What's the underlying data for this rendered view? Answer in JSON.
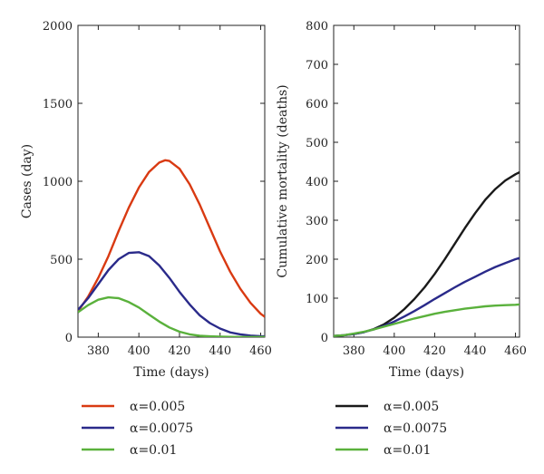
{
  "chart_data": [
    {
      "type": "line",
      "xlabel": "Time (days)",
      "ylabel": "Cases (day)",
      "xlim": [
        370,
        462
      ],
      "ylim": [
        0,
        2000
      ],
      "xticks": [
        "380",
        "400",
        "420",
        "440",
        "460"
      ],
      "yticks": [
        "0",
        "500",
        "1000",
        "1500",
        "2000"
      ],
      "grid": false,
      "legend_position": "below",
      "series": [
        {
          "name": "α=0.005",
          "color": "#d93a12",
          "x": [
            370,
            375,
            380,
            385,
            390,
            395,
            400,
            405,
            410,
            413,
            415,
            420,
            425,
            430,
            435,
            440,
            445,
            450,
            455,
            460,
            462
          ],
          "y": [
            165,
            260,
            380,
            520,
            680,
            830,
            960,
            1060,
            1120,
            1135,
            1130,
            1080,
            980,
            850,
            700,
            550,
            420,
            310,
            220,
            150,
            130
          ]
        },
        {
          "name": "α=0.0075",
          "color": "#2a2a8a",
          "x": [
            370,
            375,
            380,
            385,
            390,
            395,
            400,
            405,
            410,
            415,
            420,
            425,
            430,
            435,
            440,
            445,
            450,
            455,
            460,
            462
          ],
          "y": [
            175,
            250,
            340,
            430,
            500,
            540,
            545,
            520,
            460,
            380,
            290,
            210,
            140,
            90,
            55,
            30,
            18,
            10,
            6,
            5
          ]
        },
        {
          "name": "α=0.01",
          "color": "#5ab13c",
          "x": [
            370,
            375,
            380,
            385,
            390,
            395,
            400,
            405,
            410,
            415,
            420,
            425,
            430,
            435,
            440,
            445,
            450,
            455,
            460,
            462
          ],
          "y": [
            160,
            205,
            240,
            255,
            250,
            225,
            190,
            145,
            100,
            62,
            35,
            18,
            9,
            5,
            3,
            2,
            1,
            1,
            1,
            1
          ]
        }
      ]
    },
    {
      "type": "line",
      "xlabel": "Time (days)",
      "ylabel": "Cumulative mortality (deaths)",
      "xlim": [
        370,
        462
      ],
      "ylim": [
        0,
        800
      ],
      "xticks": [
        "380",
        "400",
        "420",
        "440",
        "460"
      ],
      "yticks": [
        "0",
        "100",
        "200",
        "300",
        "400",
        "500",
        "600",
        "700",
        "800"
      ],
      "grid": false,
      "legend_position": "below",
      "series": [
        {
          "name": "α=0.005",
          "color": "#1a1a1a",
          "x": [
            370,
            375,
            380,
            385,
            390,
            395,
            400,
            405,
            410,
            415,
            420,
            425,
            430,
            435,
            440,
            445,
            450,
            455,
            460,
            462
          ],
          "y": [
            3,
            5,
            8,
            13,
            21,
            33,
            50,
            72,
            98,
            128,
            162,
            200,
            240,
            280,
            318,
            352,
            380,
            402,
            418,
            423
          ]
        },
        {
          "name": "α=0.0075",
          "color": "#2a2a8a",
          "x": [
            370,
            375,
            380,
            385,
            390,
            395,
            400,
            405,
            410,
            415,
            420,
            425,
            430,
            435,
            440,
            445,
            450,
            455,
            460,
            462
          ],
          "y": [
            3,
            5,
            8,
            13,
            20,
            29,
            40,
            53,
            67,
            82,
            98,
            113,
            128,
            142,
            155,
            168,
            180,
            190,
            200,
            203
          ]
        },
        {
          "name": "α=0.01",
          "color": "#5ab13c",
          "x": [
            370,
            375,
            380,
            385,
            390,
            395,
            400,
            405,
            410,
            415,
            420,
            425,
            430,
            435,
            440,
            445,
            450,
            455,
            460,
            462
          ],
          "y": [
            3,
            5,
            9,
            14,
            20,
            27,
            34,
            41,
            48,
            54,
            60,
            65,
            69,
            73,
            76,
            79,
            81,
            82,
            83,
            84
          ]
        }
      ]
    }
  ]
}
